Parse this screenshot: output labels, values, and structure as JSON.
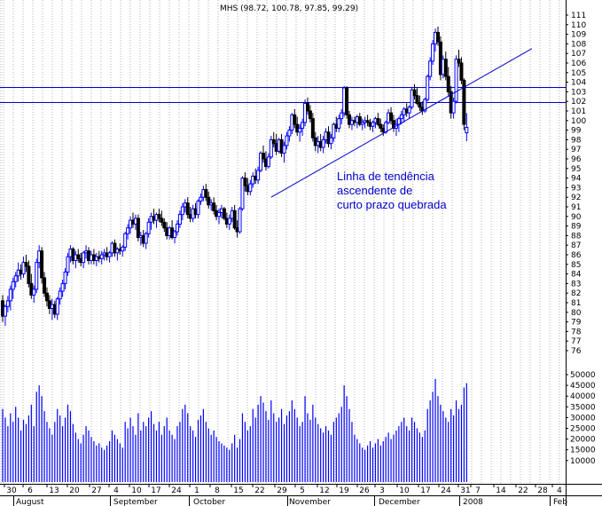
{
  "colors": {
    "grid": "#b3b3b3",
    "up_candle": "#0000ff",
    "down_candle": "#000000",
    "line": "#0000cc",
    "volume": "#0000ff",
    "text": "#000000"
  },
  "chart_data": {
    "type": "candlestick",
    "title": "MHS (98.72, 100.78, 97.85, 99.29)",
    "annotation": [
      "Linha de tendência",
      "ascendente de",
      "curto prazo quebrada"
    ],
    "price_axis": {
      "min": 76,
      "max": 111,
      "ticks": [
        111,
        110,
        109,
        108,
        107,
        106,
        105,
        104,
        103,
        102,
        101,
        100,
        99,
        98,
        97,
        96,
        95,
        94,
        93,
        92,
        91,
        90,
        89,
        88,
        87,
        86,
        85,
        84,
        83,
        82,
        81,
        80,
        79,
        78,
        77,
        76
      ]
    },
    "volume_axis": {
      "min": 0,
      "max": 50000,
      "ticks": [
        50000,
        45000,
        40000,
        35000,
        30000,
        25000,
        20000,
        15000,
        10000
      ]
    },
    "horizontal_lines": [
      103.5,
      101.9
    ],
    "trendline": {
      "from": {
        "day": 103,
        "price": 92.0
      },
      "to": {
        "day": 203,
        "price": 107.5
      }
    },
    "date_labels": [
      "30",
      "6",
      "13",
      "20",
      "27",
      "4",
      "10",
      "17",
      "24",
      "1",
      "8",
      "15",
      "22",
      "29",
      "5",
      "12",
      "19",
      "26",
      "3",
      "10",
      "17",
      "24",
      "31",
      "7",
      "14",
      "22",
      "28",
      "4"
    ],
    "month_labels": [
      "August",
      "September",
      "October",
      "November",
      "December",
      "2008",
      "Feb"
    ],
    "candles": [
      [
        81.2,
        81.8,
        79.0,
        79.6,
        34000
      ],
      [
        79.6,
        80.8,
        78.6,
        80.6,
        30000
      ],
      [
        80.6,
        81.7,
        80.0,
        81.2,
        26000
      ],
      [
        81.2,
        82.8,
        80.2,
        82.4,
        32000
      ],
      [
        82.4,
        83.6,
        81.4,
        83.2,
        28000
      ],
      [
        83.2,
        84.2,
        82.6,
        83.8,
        35000
      ],
      [
        83.8,
        85.2,
        83.2,
        84.4,
        30000
      ],
      [
        84.4,
        85.0,
        83.4,
        84.0,
        24000
      ],
      [
        84.0,
        85.8,
        83.6,
        85.2,
        29000
      ],
      [
        85.2,
        86.0,
        84.2,
        84.8,
        27000
      ],
      [
        84.8,
        85.4,
        82.6,
        83.0,
        31000
      ],
      [
        83.0,
        84.0,
        81.4,
        81.8,
        36000
      ],
      [
        81.8,
        82.8,
        81.0,
        82.4,
        26000
      ],
      [
        82.4,
        85.6,
        82.0,
        85.2,
        42000
      ],
      [
        85.2,
        87.0,
        84.6,
        86.4,
        45000
      ],
      [
        86.4,
        86.8,
        83.0,
        83.6,
        40000
      ],
      [
        83.6,
        84.2,
        81.6,
        82.0,
        33000
      ],
      [
        82.0,
        82.6,
        80.6,
        81.2,
        28000
      ],
      [
        81.2,
        81.8,
        79.8,
        80.4,
        25000
      ],
      [
        80.4,
        81.4,
        79.2,
        80.8,
        22000
      ],
      [
        80.8,
        81.2,
        79.4,
        79.8,
        28000
      ],
      [
        79.8,
        81.6,
        79.2,
        81.4,
        34000
      ],
      [
        81.4,
        82.6,
        80.8,
        82.2,
        31000
      ],
      [
        82.2,
        83.4,
        81.6,
        83.0,
        26000
      ],
      [
        83.0,
        84.6,
        82.4,
        84.2,
        30000
      ],
      [
        84.2,
        86.2,
        83.8,
        85.8,
        36000
      ],
      [
        85.8,
        87.0,
        85.2,
        86.6,
        33000
      ],
      [
        86.6,
        86.8,
        85.0,
        85.4,
        27000
      ],
      [
        85.4,
        86.4,
        84.6,
        86.0,
        23000
      ],
      [
        86.0,
        86.6,
        85.2,
        85.6,
        20000
      ],
      [
        85.6,
        86.2,
        84.8,
        85.2,
        18000
      ],
      [
        85.2,
        86.4,
        84.6,
        86.2,
        22000
      ],
      [
        86.2,
        87.0,
        85.6,
        86.4,
        26000
      ],
      [
        86.4,
        86.8,
        85.0,
        85.4,
        24000
      ],
      [
        85.4,
        86.4,
        85.0,
        86.0,
        21000
      ],
      [
        86.0,
        86.6,
        85.0,
        85.4,
        19000
      ],
      [
        85.4,
        86.2,
        84.8,
        85.8,
        17000
      ],
      [
        85.8,
        86.4,
        85.2,
        85.6,
        18000
      ],
      [
        85.6,
        86.4,
        85.0,
        86.0,
        16000
      ],
      [
        86.0,
        86.6,
        85.4,
        86.2,
        15000
      ],
      [
        86.2,
        86.8,
        85.4,
        85.8,
        17000
      ],
      [
        85.8,
        86.4,
        85.2,
        86.2,
        19000
      ],
      [
        86.2,
        87.4,
        85.8,
        87.2,
        24000
      ],
      [
        87.2,
        87.6,
        85.8,
        86.2,
        22000
      ],
      [
        86.2,
        86.8,
        85.4,
        86.6,
        20000
      ],
      [
        86.6,
        87.2,
        86.0,
        86.4,
        18000
      ],
      [
        86.4,
        87.0,
        85.8,
        86.8,
        16000
      ],
      [
        86.8,
        88.4,
        86.4,
        88.2,
        28000
      ],
      [
        88.2,
        89.2,
        87.6,
        88.8,
        25000
      ],
      [
        88.8,
        90.0,
        88.2,
        89.6,
        30000
      ],
      [
        89.6,
        90.4,
        88.8,
        89.2,
        26000
      ],
      [
        89.2,
        90.2,
        88.6,
        89.8,
        22000
      ],
      [
        89.8,
        90.2,
        87.4,
        87.8,
        32000
      ],
      [
        87.8,
        88.4,
        87.0,
        88.0,
        24000
      ],
      [
        88.0,
        88.6,
        86.8,
        87.2,
        28000
      ],
      [
        87.2,
        88.4,
        86.6,
        88.2,
        26000
      ],
      [
        88.2,
        89.8,
        87.8,
        89.4,
        30000
      ],
      [
        89.4,
        90.4,
        88.6,
        90.0,
        33000
      ],
      [
        90.0,
        90.8,
        89.2,
        89.6,
        27000
      ],
      [
        89.6,
        90.4,
        88.8,
        90.2,
        24000
      ],
      [
        90.2,
        90.8,
        89.4,
        89.8,
        28000
      ],
      [
        89.8,
        90.6,
        89.0,
        89.4,
        22000
      ],
      [
        89.4,
        89.8,
        88.4,
        88.8,
        26000
      ],
      [
        88.8,
        89.4,
        87.6,
        88.0,
        30000
      ],
      [
        88.0,
        89.0,
        87.6,
        88.8,
        24000
      ],
      [
        88.8,
        89.6,
        87.6,
        87.8,
        22000
      ],
      [
        87.8,
        88.6,
        87.2,
        88.4,
        20000
      ],
      [
        88.4,
        89.6,
        88.0,
        89.2,
        26000
      ],
      [
        89.2,
        90.6,
        88.8,
        90.2,
        28000
      ],
      [
        90.2,
        91.4,
        89.6,
        91.0,
        34000
      ],
      [
        91.0,
        91.8,
        90.4,
        91.4,
        36000
      ],
      [
        91.4,
        92.0,
        89.8,
        90.2,
        32000
      ],
      [
        90.2,
        91.0,
        89.4,
        89.8,
        26000
      ],
      [
        89.8,
        91.2,
        89.4,
        90.8,
        24000
      ],
      [
        90.8,
        91.4,
        89.8,
        90.2,
        21000
      ],
      [
        90.2,
        91.8,
        89.8,
        91.6,
        29000
      ],
      [
        91.6,
        92.4,
        91.2,
        92.0,
        31000
      ],
      [
        92.0,
        93.2,
        91.6,
        92.8,
        34000
      ],
      [
        92.8,
        93.4,
        91.6,
        92.0,
        28000
      ],
      [
        92.0,
        92.6,
        90.8,
        91.2,
        25000
      ],
      [
        91.2,
        91.8,
        90.6,
        91.4,
        22000
      ],
      [
        91.4,
        92.0,
        90.2,
        90.6,
        24000
      ],
      [
        90.6,
        91.2,
        89.6,
        90.0,
        21000
      ],
      [
        90.0,
        90.8,
        89.2,
        90.4,
        19000
      ],
      [
        90.4,
        91.2,
        89.8,
        90.8,
        18000
      ],
      [
        90.8,
        91.0,
        89.6,
        89.8,
        17000
      ],
      [
        89.8,
        90.4,
        88.8,
        89.2,
        16000
      ],
      [
        89.2,
        90.2,
        88.6,
        89.8,
        15000
      ],
      [
        89.8,
        91.0,
        89.4,
        90.6,
        18000
      ],
      [
        90.6,
        91.2,
        88.6,
        88.8,
        22000
      ],
      [
        88.8,
        89.6,
        87.8,
        88.4,
        16000
      ],
      [
        88.4,
        91.0,
        88.2,
        90.8,
        20000
      ],
      [
        90.8,
        94.2,
        90.6,
        94.0,
        32000
      ],
      [
        94.0,
        94.6,
        92.6,
        93.2,
        28000
      ],
      [
        93.2,
        94.0,
        92.2,
        92.6,
        24000
      ],
      [
        92.6,
        93.8,
        92.2,
        93.4,
        26000
      ],
      [
        93.4,
        94.6,
        93.0,
        94.2,
        34000
      ],
      [
        94.2,
        95.0,
        93.4,
        93.8,
        30000
      ],
      [
        93.8,
        95.2,
        93.4,
        94.8,
        36000
      ],
      [
        94.8,
        96.8,
        94.6,
        96.6,
        40000
      ],
      [
        96.6,
        97.4,
        95.6,
        96.0,
        37000
      ],
      [
        96.0,
        96.8,
        94.8,
        95.2,
        33000
      ],
      [
        95.2,
        96.6,
        95.0,
        96.2,
        29000
      ],
      [
        96.2,
        98.4,
        96.0,
        98.0,
        38000
      ],
      [
        98.0,
        98.8,
        97.2,
        97.6,
        32000
      ],
      [
        97.6,
        98.6,
        96.4,
        96.8,
        28000
      ],
      [
        96.8,
        98.2,
        96.6,
        98.0,
        30000
      ],
      [
        98.0,
        98.6,
        96.2,
        96.6,
        34000
      ],
      [
        96.6,
        97.8,
        95.6,
        97.4,
        27000
      ],
      [
        97.4,
        98.8,
        97.0,
        98.4,
        31000
      ],
      [
        98.4,
        99.4,
        97.8,
        99.0,
        33000
      ],
      [
        99.0,
        100.8,
        98.6,
        100.6,
        38000
      ],
      [
        100.6,
        101.2,
        99.2,
        99.6,
        34000
      ],
      [
        99.6,
        100.4,
        98.4,
        98.8,
        30000
      ],
      [
        98.8,
        99.6,
        97.8,
        99.2,
        26000
      ],
      [
        99.2,
        100.2,
        98.4,
        99.8,
        28000
      ],
      [
        99.8,
        102.2,
        99.4,
        101.8,
        40000
      ],
      [
        101.8,
        102.4,
        100.6,
        101.0,
        32000
      ],
      [
        101.0,
        101.6,
        99.8,
        100.2,
        29000
      ],
      [
        100.2,
        100.8,
        97.8,
        98.2,
        36000
      ],
      [
        98.2,
        98.8,
        96.8,
        97.4,
        30000
      ],
      [
        97.4,
        98.4,
        96.6,
        97.8,
        27000
      ],
      [
        97.8,
        98.6,
        96.8,
        97.2,
        25000
      ],
      [
        97.2,
        98.4,
        96.6,
        98.0,
        23000
      ],
      [
        98.0,
        99.2,
        97.6,
        98.8,
        26000
      ],
      [
        98.8,
        99.4,
        97.2,
        97.6,
        24000
      ],
      [
        97.6,
        98.6,
        97.0,
        98.2,
        22000
      ],
      [
        98.2,
        99.8,
        97.8,
        99.6,
        28000
      ],
      [
        99.6,
        100.4,
        98.8,
        99.2,
        30000
      ],
      [
        99.2,
        100.6,
        98.8,
        100.2,
        32000
      ],
      [
        100.2,
        101.2,
        99.6,
        100.8,
        35000
      ],
      [
        100.8,
        103.6,
        100.4,
        103.4,
        45000
      ],
      [
        103.4,
        103.6,
        100.2,
        100.6,
        40000
      ],
      [
        100.6,
        101.0,
        99.2,
        99.6,
        34000
      ],
      [
        99.6,
        100.4,
        99.0,
        100.0,
        28000
      ],
      [
        100.0,
        100.4,
        99.4,
        99.8,
        22000
      ],
      [
        99.8,
        100.6,
        99.2,
        100.4,
        20000
      ],
      [
        100.4,
        100.8,
        99.4,
        99.6,
        18000
      ],
      [
        99.6,
        100.2,
        99.0,
        99.8,
        16000
      ],
      [
        99.8,
        100.4,
        99.2,
        100.0,
        15000
      ],
      [
        100.0,
        100.6,
        99.4,
        99.8,
        17000
      ],
      [
        99.8,
        100.2,
        99.0,
        99.4,
        19000
      ],
      [
        99.4,
        100.0,
        98.8,
        99.8,
        16000
      ],
      [
        99.8,
        100.4,
        99.2,
        100.2,
        18000
      ],
      [
        100.2,
        100.8,
        99.4,
        99.6,
        20000
      ],
      [
        99.6,
        100.2,
        98.8,
        99.2,
        17000
      ],
      [
        99.2,
        99.6,
        98.4,
        98.8,
        19000
      ],
      [
        98.8,
        100.0,
        98.6,
        99.8,
        21000
      ],
      [
        99.8,
        101.2,
        99.6,
        100.8,
        23000
      ],
      [
        100.8,
        101.4,
        99.6,
        100.0,
        20000
      ],
      [
        100.0,
        100.6,
        98.8,
        99.2,
        22000
      ],
      [
        99.2,
        100.2,
        98.4,
        99.6,
        24000
      ],
      [
        99.6,
        100.4,
        98.8,
        100.2,
        26000
      ],
      [
        100.2,
        101.0,
        99.6,
        100.6,
        28000
      ],
      [
        100.6,
        101.4,
        99.8,
        101.2,
        30000
      ],
      [
        101.2,
        101.8,
        100.4,
        100.8,
        26000
      ],
      [
        100.8,
        101.6,
        100.2,
        101.4,
        24000
      ],
      [
        101.4,
        103.4,
        101.2,
        103.2,
        30000
      ],
      [
        103.2,
        103.8,
        102.2,
        102.6,
        28000
      ],
      [
        102.6,
        103.4,
        101.6,
        101.8,
        25000
      ],
      [
        101.8,
        102.6,
        101.0,
        101.4,
        23000
      ],
      [
        101.4,
        102.0,
        100.6,
        101.0,
        21000
      ],
      [
        101.0,
        102.4,
        100.8,
        102.2,
        24000
      ],
      [
        102.2,
        104.8,
        102.0,
        104.6,
        34000
      ],
      [
        104.6,
        106.6,
        104.2,
        106.2,
        38000
      ],
      [
        106.2,
        108.4,
        105.8,
        108.0,
        42000
      ],
      [
        108.0,
        109.6,
        107.2,
        109.2,
        48000
      ],
      [
        109.2,
        109.8,
        107.8,
        108.2,
        40000
      ],
      [
        108.2,
        108.8,
        104.2,
        104.8,
        36000
      ],
      [
        104.8,
        106.8,
        104.4,
        106.4,
        33000
      ],
      [
        106.4,
        107.2,
        104.2,
        104.6,
        30000
      ],
      [
        104.6,
        105.6,
        102.6,
        103.0,
        28000
      ],
      [
        103.0,
        103.6,
        100.2,
        100.8,
        34000
      ],
      [
        100.8,
        102.4,
        100.2,
        102.0,
        31000
      ],
      [
        102.0,
        106.8,
        101.8,
        106.4,
        38000
      ],
      [
        106.4,
        107.4,
        105.6,
        106.0,
        34000
      ],
      [
        106.0,
        106.6,
        103.8,
        104.2,
        36000
      ],
      [
        104.2,
        104.4,
        99.0,
        99.6,
        44000
      ],
      [
        98.72,
        100.78,
        97.85,
        99.29,
        46000
      ]
    ]
  }
}
